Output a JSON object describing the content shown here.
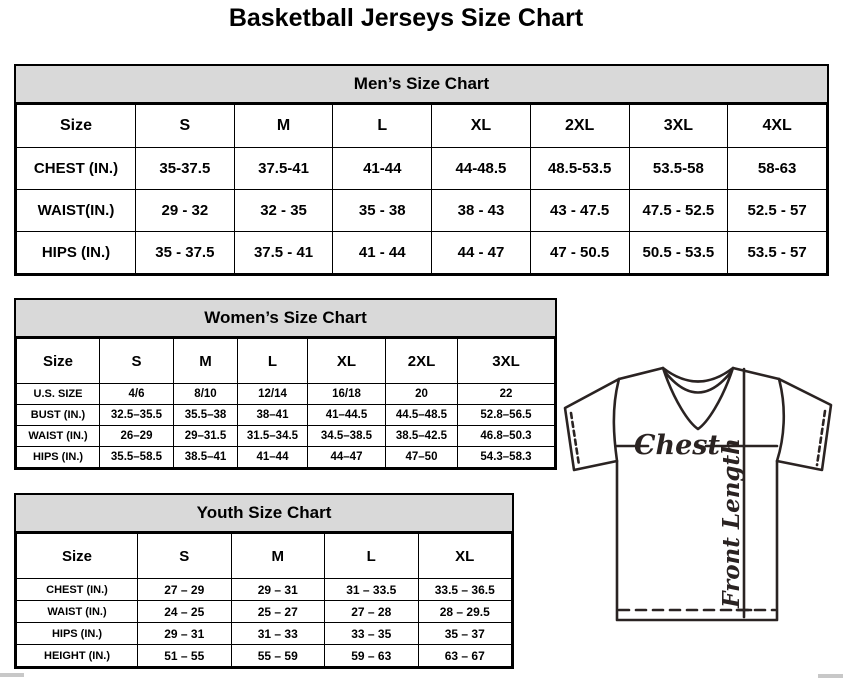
{
  "page": {
    "title": "Basketball Jerseys Size Chart"
  },
  "mens": {
    "title": "Men’s Size Chart",
    "columns": [
      "Size",
      "S",
      "M",
      "L",
      "XL",
      "2XL",
      "3XL",
      "4XL"
    ],
    "rows": [
      {
        "label": "CHEST (IN.)",
        "values": [
          "35-37.5",
          "37.5-41",
          "41-44",
          "44-48.5",
          "48.5-53.5",
          "53.5-58",
          "58-63"
        ]
      },
      {
        "label": "WAIST(IN.)",
        "values": [
          "29 - 32",
          "32 - 35",
          "35 - 38",
          "38 - 43",
          "43 - 47.5",
          "47.5 - 52.5",
          "52.5 - 57"
        ]
      },
      {
        "label": "HIPS (IN.)",
        "values": [
          "35 - 37.5",
          "37.5 - 41",
          "41 - 44",
          "44 - 47",
          "47 - 50.5",
          "50.5 - 53.5",
          "53.5 - 57"
        ]
      }
    ]
  },
  "womens": {
    "title": "Women’s Size Chart",
    "columns": [
      "Size",
      "S",
      "M",
      "L",
      "XL",
      "2XL",
      "3XL"
    ],
    "rows": [
      {
        "label": "U.S. SIZE",
        "values": [
          "4/6",
          "8/10",
          "12/14",
          "16/18",
          "20",
          "22"
        ]
      },
      {
        "label": "BUST (IN.)",
        "values": [
          "32.5–35.5",
          "35.5–38",
          "38–41",
          "41–44.5",
          "44.5–48.5",
          "52.8–56.5"
        ]
      },
      {
        "label": "WAIST (IN.)",
        "values": [
          "26–29",
          "29–31.5",
          "31.5–34.5",
          "34.5–38.5",
          "38.5–42.5",
          "46.8–50.3"
        ]
      },
      {
        "label": "HIPS (IN.)",
        "values": [
          "35.5–58.5",
          "38.5–41",
          "41–44",
          "44–47",
          "47–50",
          "54.3–58.3"
        ]
      }
    ]
  },
  "youth": {
    "title": "Youth Size Chart",
    "columns": [
      "Size",
      "S",
      "M",
      "L",
      "XL"
    ],
    "rows": [
      {
        "label": "CHEST (IN.)",
        "values": [
          "27 – 29",
          "29 – 31",
          "31 – 33.5",
          "33.5 – 36.5"
        ]
      },
      {
        "label": "WAIST (IN.)",
        "values": [
          "24 – 25",
          "25 – 27",
          "27 – 28",
          "28 – 29.5"
        ]
      },
      {
        "label": "HIPS (IN.)",
        "values": [
          "29 – 31",
          "31 – 33",
          "33 – 35",
          "35 – 37"
        ]
      },
      {
        "label": "HEIGHT (IN.)",
        "values": [
          "51 – 55",
          "55 – 59",
          "59 – 63",
          "63 – 67"
        ]
      }
    ]
  },
  "diagram": {
    "chest_label": "Chest",
    "front_length_label": "Front Length"
  },
  "colors": {
    "header_bg": "#d9d9d9",
    "table_border": "#000000",
    "diagram_line": "#2a2322"
  }
}
